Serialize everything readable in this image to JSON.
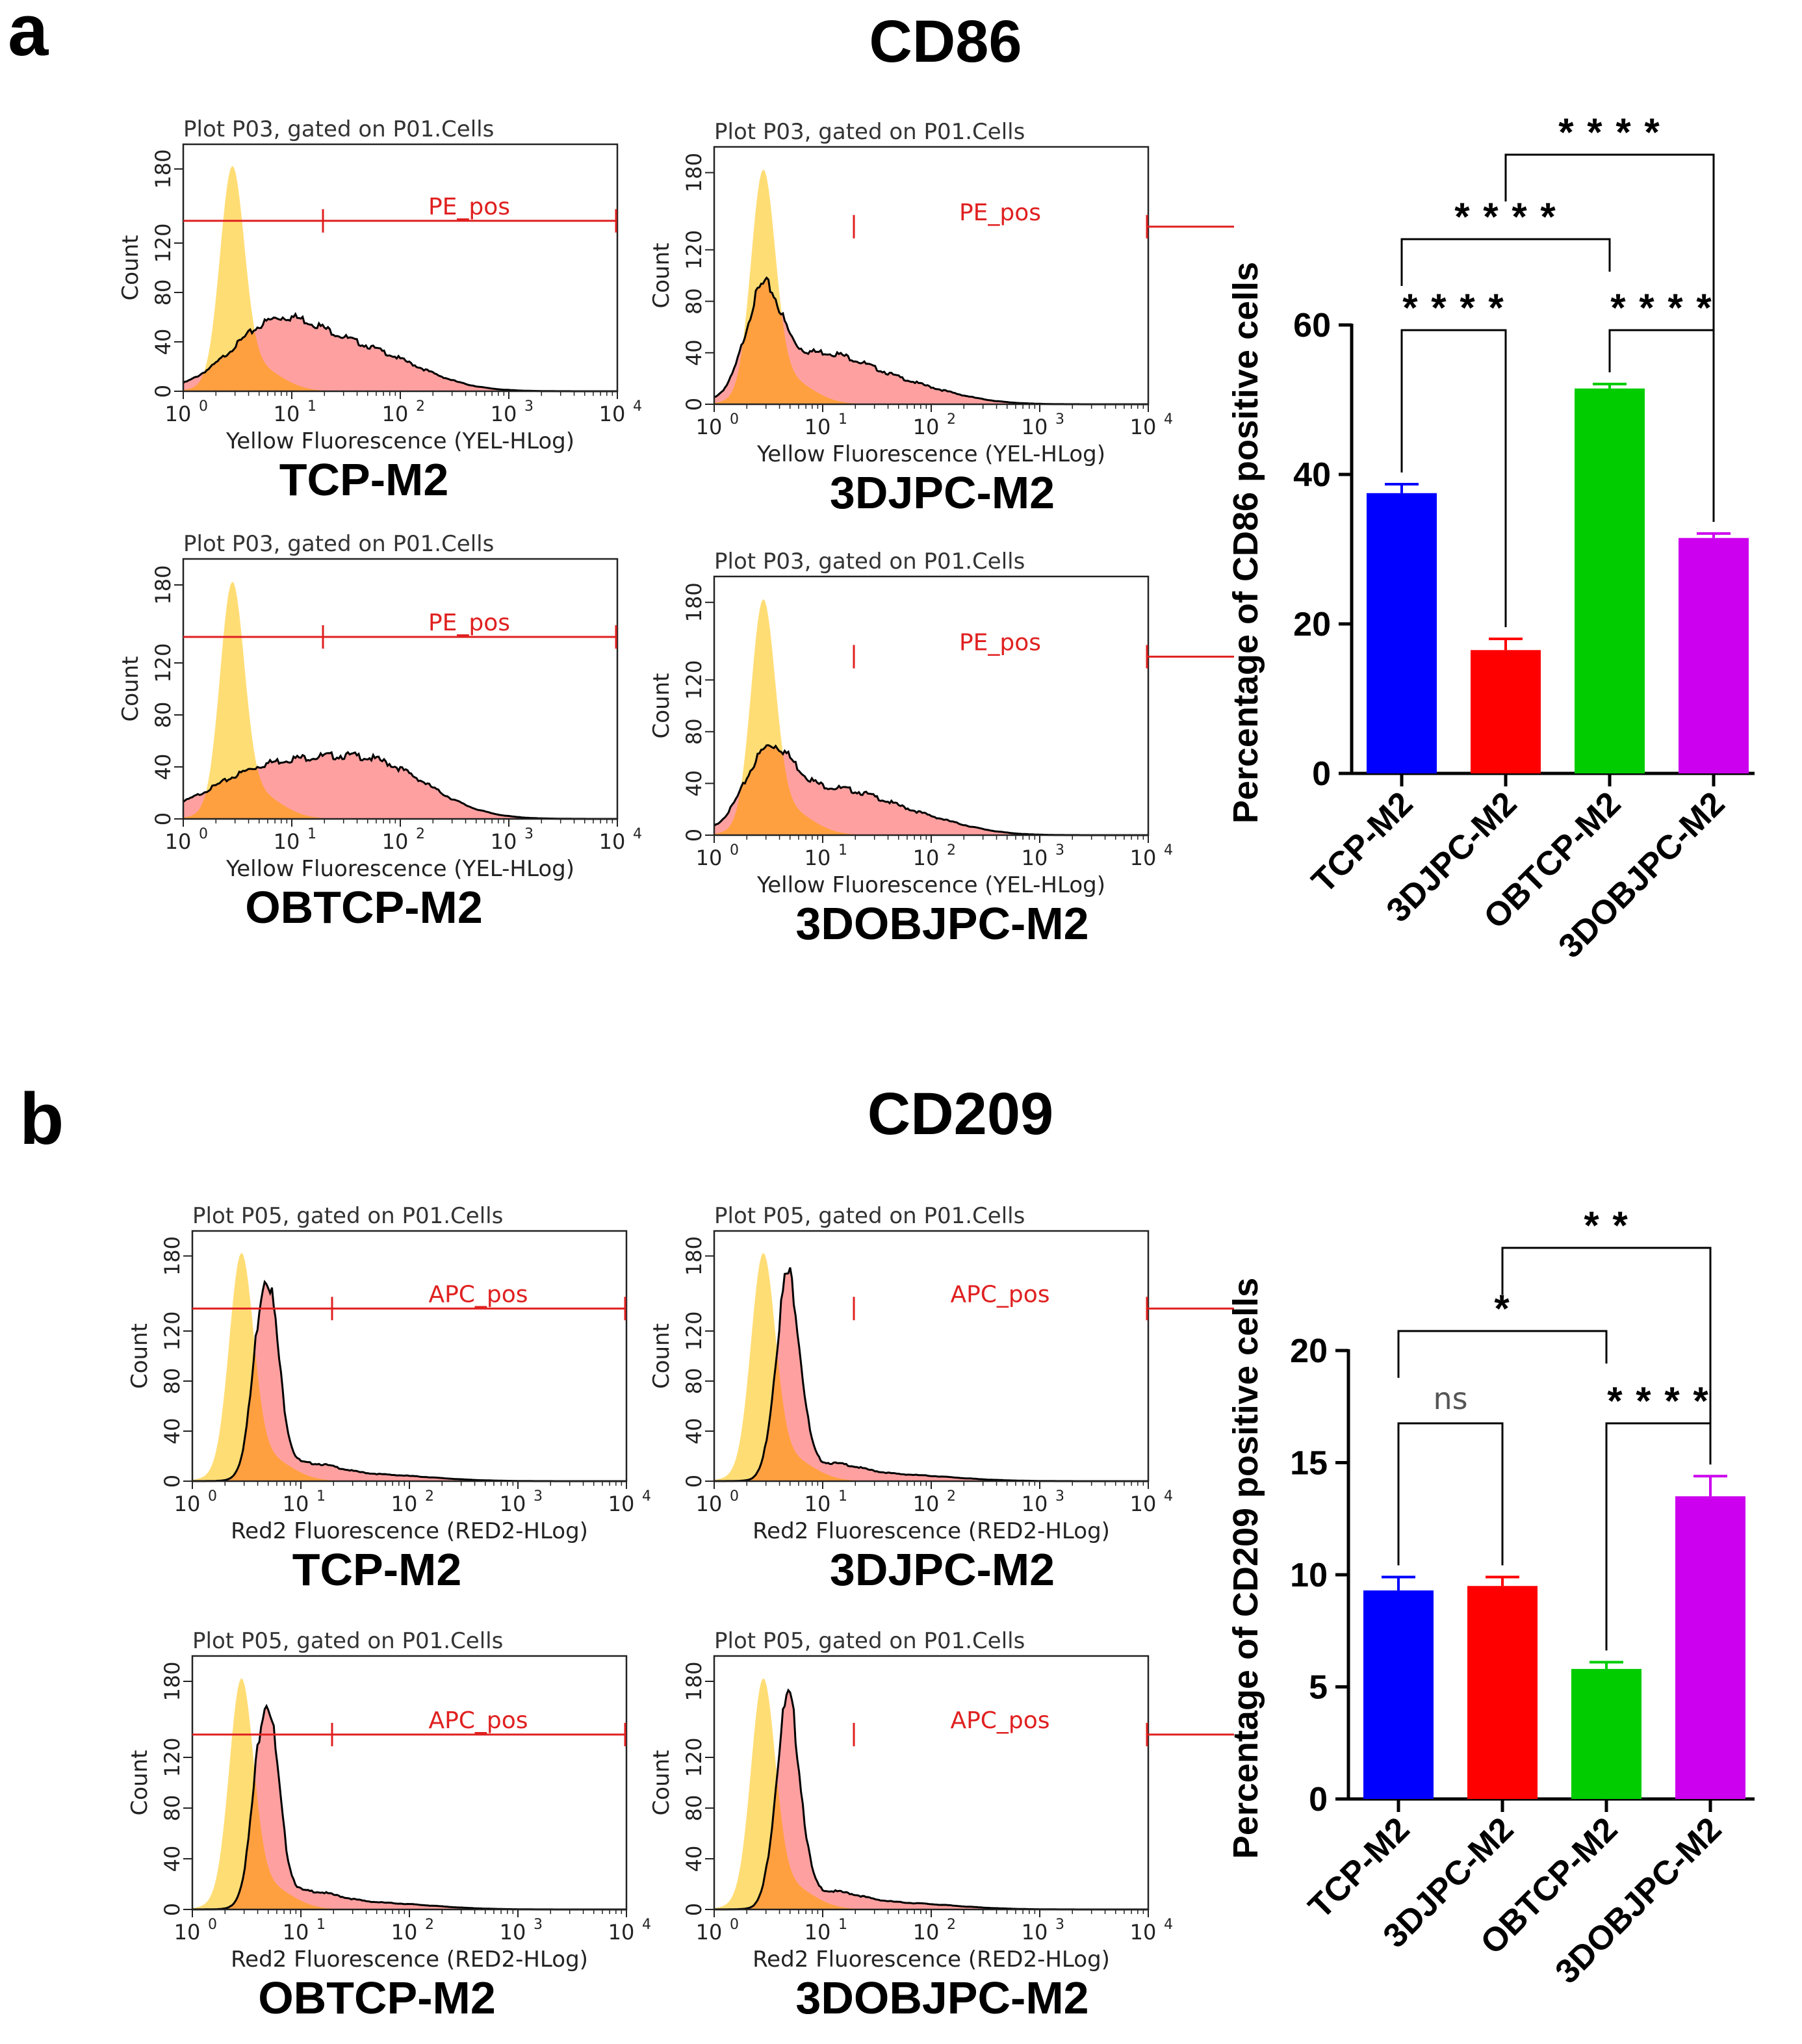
{
  "panels": [
    {
      "letter": "a",
      "title": "CD86",
      "histograms": [
        {
          "group": "TCP-M2",
          "plot_title": "Plot P03, gated on P01.Cells",
          "gate_label": "PE_pos",
          "xlabel": "Yellow Fluorescence (YEL-HLog)",
          "ylabel": "Count",
          "shape": "broad"
        },
        {
          "group": "3DJPC-M2",
          "plot_title": "Plot P03, gated on P01.Cells",
          "gate_label": "PE_pos",
          "xlabel": "Yellow Fluorescence (YEL-HLog)",
          "ylabel": "Count",
          "shape": "broad-low"
        },
        {
          "group": "OBTCP-M2",
          "plot_title": "Plot P03, gated on P01.Cells",
          "gate_label": "PE_pos",
          "xlabel": "Yellow Fluorescence (YEL-HLog)",
          "ylabel": "Count",
          "shape": "broad-high"
        },
        {
          "group": "3DOBJPC-M2",
          "plot_title": "Plot P03, gated on P01.Cells",
          "gate_label": "PE_pos",
          "xlabel": "Yellow Fluorescence (YEL-HLog)",
          "ylabel": "Count",
          "shape": "broad-mid"
        }
      ]
    },
    {
      "letter": "b",
      "title": "CD209",
      "histograms": [
        {
          "group": "TCP-M2",
          "plot_title": "Plot P05, gated on P01.Cells",
          "gate_label": "APC_pos",
          "xlabel": "Red2 Fluorescence (RED2-HLog)",
          "ylabel": "Count",
          "shape": "narrow"
        },
        {
          "group": "3DJPC-M2",
          "plot_title": "Plot P05, gated on P01.Cells",
          "gate_label": "APC_pos",
          "xlabel": "Red2 Fluorescence (RED2-HLog)",
          "ylabel": "Count",
          "shape": "narrow"
        },
        {
          "group": "OBTCP-M2",
          "plot_title": "Plot P05, gated on P01.Cells",
          "gate_label": "APC_pos",
          "xlabel": "Red2 Fluorescence (RED2-HLog)",
          "ylabel": "Count",
          "shape": "narrow"
        },
        {
          "group": "3DOBJPC-M2",
          "plot_title": "Plot P05, gated on P01.Cells",
          "gate_label": "APC_pos",
          "xlabel": "Red2 Fluorescence (RED2-HLog)",
          "ylabel": "Count",
          "shape": "narrow"
        }
      ]
    }
  ],
  "histogram_axes": {
    "y_ticks": [
      "0",
      "40",
      "80",
      "120",
      "180"
    ],
    "x_ticks": [
      {
        "base": "10",
        "exp": "0"
      },
      {
        "base": "10",
        "exp": "1"
      },
      {
        "base": "10",
        "exp": "2"
      },
      {
        "base": "10",
        "exp": "3"
      },
      {
        "base": "10",
        "exp": "4"
      }
    ]
  },
  "chart_data": [
    {
      "type": "bar",
      "title": "CD86",
      "ylabel": "Percentage of CD86 positive cells",
      "categories": [
        "TCP-M2",
        "3DJPC-M2",
        "OBTCP-M2",
        "3DOBJPC-M2"
      ],
      "values": [
        37.5,
        16.5,
        51.5,
        31.5
      ],
      "errors": [
        1.2,
        1.5,
        0.6,
        0.6
      ],
      "colors": [
        "#0000FF",
        "#FF0000",
        "#00CC00",
        "#CC00EE"
      ],
      "ylim": [
        0,
        60
      ],
      "yticks": [
        "0",
        "20",
        "40",
        "60"
      ],
      "significance": [
        {
          "from": 0,
          "to": 1,
          "label": "* * * *"
        },
        {
          "from": 2,
          "to": 3,
          "label": "* * * *"
        },
        {
          "from": 0,
          "to": 2,
          "label": "* * * *"
        },
        {
          "from": 1,
          "to": 3,
          "label": "* * * *"
        }
      ]
    },
    {
      "type": "bar",
      "title": "CD209",
      "ylabel": "Percentage of CD209 positive cells",
      "categories": [
        "TCP-M2",
        "3DJPC-M2",
        "OBTCP-M2",
        "3DOBJPC-M2"
      ],
      "values": [
        9.3,
        9.5,
        5.8,
        13.5
      ],
      "errors": [
        0.6,
        0.4,
        0.3,
        0.9
      ],
      "colors": [
        "#0000FF",
        "#FF0000",
        "#00CC00",
        "#CC00EE"
      ],
      "ylim": [
        0,
        20
      ],
      "yticks": [
        "0",
        "5",
        "10",
        "15",
        "20"
      ],
      "significance": [
        {
          "from": 0,
          "to": 1,
          "label": "ns"
        },
        {
          "from": 2,
          "to": 3,
          "label": "* * * *"
        },
        {
          "from": 0,
          "to": 2,
          "label": "*"
        },
        {
          "from": 1,
          "to": 3,
          "label": "* *"
        }
      ]
    }
  ]
}
